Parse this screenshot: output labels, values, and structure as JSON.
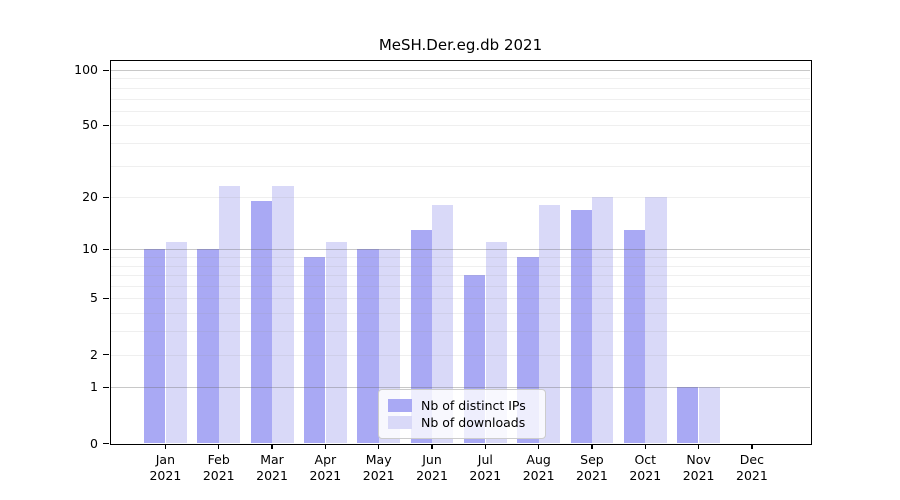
{
  "chart_data": {
    "type": "bar",
    "title": "MeSH.Der.eg.db 2021",
    "categories": [
      "Jan",
      "Feb",
      "Mar",
      "Apr",
      "May",
      "Jun",
      "Jul",
      "Aug",
      "Sep",
      "Oct",
      "Nov",
      "Dec"
    ],
    "x_ticks": [
      {
        "line1": "Jan",
        "line2": "2021"
      },
      {
        "line1": "Feb",
        "line2": "2021"
      },
      {
        "line1": "Mar",
        "line2": "2021"
      },
      {
        "line1": "Apr",
        "line2": "2021"
      },
      {
        "line1": "May",
        "line2": "2021"
      },
      {
        "line1": "Jun",
        "line2": "2021"
      },
      {
        "line1": "Jul",
        "line2": "2021"
      },
      {
        "line1": "Aug",
        "line2": "2021"
      },
      {
        "line1": "Sep",
        "line2": "2021"
      },
      {
        "line1": "Oct",
        "line2": "2021"
      },
      {
        "line1": "Nov",
        "line2": "2021"
      },
      {
        "line1": "Dec",
        "line2": "2021"
      }
    ],
    "series": [
      {
        "name": "Nb of distinct IPs",
        "color": "#a9a9f4",
        "values": [
          10,
          10,
          19,
          9,
          10,
          13,
          7,
          9,
          17,
          13,
          1,
          0
        ]
      },
      {
        "name": "Nb of downloads",
        "color": "#d9d9f8",
        "values": [
          11,
          23,
          23,
          11,
          10,
          18,
          11,
          18,
          20,
          20,
          1,
          0
        ]
      }
    ],
    "y_axis": {
      "scale": "log1p",
      "tick_values": [
        100,
        50,
        20,
        10,
        5,
        2,
        1,
        0
      ],
      "tick_labels": [
        "100",
        "50",
        "20",
        "10",
        "5",
        "2",
        "1",
        "0"
      ],
      "major_gridlines": [
        1,
        10,
        100
      ],
      "minor_gridlines": [
        2,
        3,
        4,
        5,
        6,
        7,
        8,
        9,
        20,
        30,
        40,
        50,
        60,
        70,
        80,
        90
      ],
      "ylim": [
        0,
        113
      ],
      "grid": true
    },
    "legend": {
      "position": "lower-center",
      "entries": [
        "Nb of distinct IPs",
        "Nb of downloads"
      ]
    }
  }
}
